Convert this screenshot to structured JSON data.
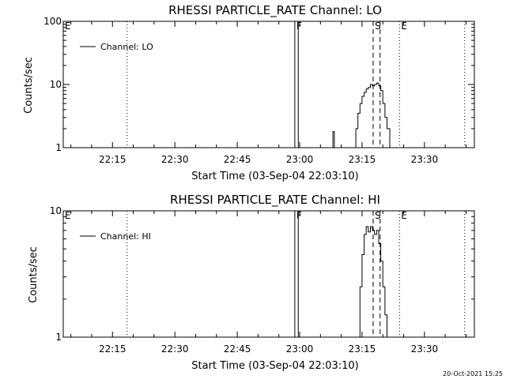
{
  "chart_data": [
    {
      "type": "line",
      "title": "RHESSI PARTICLE_RATE Channel: LO",
      "xlabel": "Start Time (03-Sep-04 22:03:10)",
      "ylabel": "Counts/sec",
      "y_scale": "log",
      "ylim": [
        1,
        100
      ],
      "xlim": [
        "22:03:10",
        "23:42:00"
      ],
      "x_ticks": [
        "22:15",
        "22:30",
        "22:45",
        "23:00",
        "23:15",
        "23:30"
      ],
      "y_ticks": [
        "1",
        "10",
        "100"
      ],
      "legend": {
        "position": "top-left",
        "entries": [
          "Channel: LO"
        ]
      },
      "markers": [
        {
          "label": "E",
          "time": "22:03:10",
          "style": "none"
        },
        {
          "label": "",
          "time": "22:18:30",
          "style": "dotted"
        },
        {
          "label": "F",
          "time": "22:58:50",
          "style": "solid"
        },
        {
          "label": "",
          "time": "22:59:40",
          "style": "solid"
        },
        {
          "label": "S",
          "time": "23:17:40",
          "style": "dashed"
        },
        {
          "label": "",
          "time": "23:19:20",
          "style": "dashed"
        },
        {
          "label": "E",
          "time": "23:24:00",
          "style": "dotted"
        },
        {
          "label": "",
          "time": "23:39:40",
          "style": "dotted"
        }
      ],
      "series": [
        {
          "name": "Channel: LO",
          "segments": [
            [
              [
                "23:07:40",
                1
              ],
              [
                "23:08:00",
                1.8
              ],
              [
                "23:08:20",
                1
              ]
            ],
            [
              [
                "23:13:00",
                1
              ],
              [
                "23:13:30",
                2
              ],
              [
                "23:14:00",
                3.5
              ],
              [
                "23:14:30",
                5
              ],
              [
                "23:15:00",
                6.5
              ],
              [
                "23:15:30",
                7.5
              ],
              [
                "23:16:00",
                8.5
              ],
              [
                "23:16:30",
                9
              ],
              [
                "23:17:00",
                10
              ],
              [
                "23:17:30",
                9.5
              ],
              [
                "23:18:00",
                10
              ],
              [
                "23:18:30",
                10.5
              ],
              [
                "23:19:00",
                9.5
              ],
              [
                "23:19:30",
                8
              ],
              [
                "23:20:00",
                5
              ],
              [
                "23:20:30",
                3
              ],
              [
                "23:21:00",
                2
              ],
              [
                "23:21:40",
                1
              ]
            ]
          ]
        }
      ],
      "grid": false
    },
    {
      "type": "line",
      "title": "RHESSI PARTICLE_RATE Channel: HI",
      "xlabel": "Start Time (03-Sep-04 22:03:10)",
      "ylabel": "Counts/sec",
      "y_scale": "log",
      "ylim": [
        1,
        10
      ],
      "xlim": [
        "22:03:10",
        "23:42:00"
      ],
      "x_ticks": [
        "22:15",
        "22:30",
        "22:45",
        "23:00",
        "23:15",
        "23:30"
      ],
      "y_ticks": [
        "1",
        "10"
      ],
      "legend": {
        "position": "top-left",
        "entries": [
          "Channel: HI"
        ]
      },
      "markers": [
        {
          "label": "E",
          "time": "22:03:10",
          "style": "none"
        },
        {
          "label": "",
          "time": "22:18:30",
          "style": "dotted"
        },
        {
          "label": "F",
          "time": "22:58:50",
          "style": "solid"
        },
        {
          "label": "",
          "time": "22:59:40",
          "style": "solid"
        },
        {
          "label": "S",
          "time": "23:17:40",
          "style": "dashed"
        },
        {
          "label": "",
          "time": "23:19:20",
          "style": "dashed"
        },
        {
          "label": "E",
          "time": "23:24:00",
          "style": "dotted"
        },
        {
          "label": "",
          "time": "23:39:40",
          "style": "dotted"
        }
      ],
      "series": [
        {
          "name": "Channel: HI",
          "segments": [
            [
              [
                "23:14:00",
                1
              ],
              [
                "23:14:30",
                2.5
              ],
              [
                "23:15:00",
                4.5
              ],
              [
                "23:15:30",
                6.5
              ],
              [
                "23:16:00",
                7.5
              ],
              [
                "23:16:30",
                6.8
              ],
              [
                "23:17:00",
                7.5
              ],
              [
                "23:17:30",
                7
              ],
              [
                "23:18:00",
                6.5
              ],
              [
                "23:18:30",
                7
              ],
              [
                "23:19:00",
                5.5
              ],
              [
                "23:19:30",
                4
              ],
              [
                "23:20:00",
                2.5
              ],
              [
                "23:20:30",
                1.5
              ],
              [
                "23:21:00",
                1
              ]
            ]
          ]
        }
      ],
      "grid": false
    }
  ],
  "footer": {
    "timestamp": "20-Oct-2021 15:25"
  }
}
